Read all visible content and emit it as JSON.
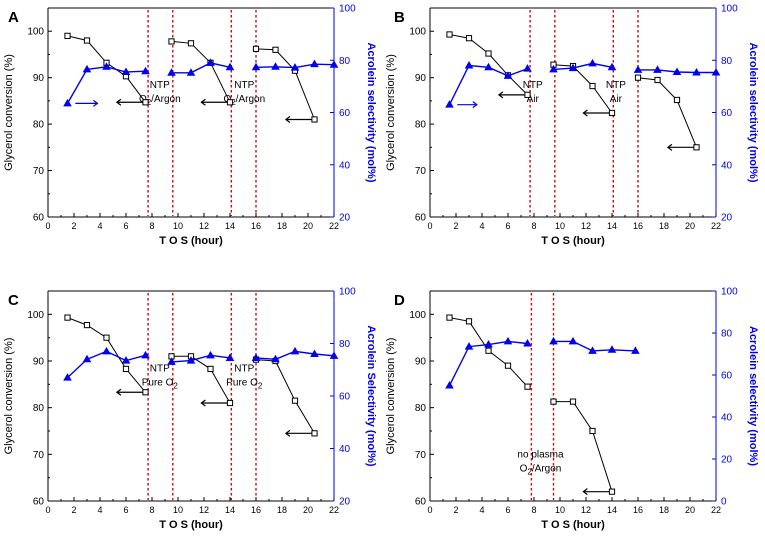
{
  "figure": {
    "shared": {
      "xlabel": "T O S (hour)",
      "ylabel_left": "Glycerol conversion (%)",
      "xlim": [
        0,
        22
      ],
      "xticks": [
        0,
        2,
        4,
        6,
        8,
        10,
        12,
        14,
        16,
        18,
        20,
        22
      ]
    },
    "colors": {
      "conversion": "#000000",
      "selectivity": "#0000ee",
      "divider": "#dd0000"
    }
  },
  "chart_data": [
    {
      "panel": "A",
      "type": "line",
      "title": "",
      "xlabel": "T O S (hour)",
      "ylabel": "Glycerol conversion (%)",
      "ylabel_right": "Acrolein selectivity (mol%)",
      "xlim": [
        0,
        22
      ],
      "ylim": [
        60,
        105
      ],
      "ylim_right": [
        20,
        100
      ],
      "yticks": [
        60,
        70,
        80,
        90,
        100
      ],
      "yticks_right": [
        20,
        40,
        60,
        80,
        100
      ],
      "dividers_x": [
        7.7,
        9.6,
        14.1,
        16.0
      ],
      "annotations": [
        {
          "lines": [
            "NTP",
            "O2/Argon"
          ],
          "x": 8.6,
          "y": 64,
          "axis": "right"
        },
        {
          "lines": [
            "NTP",
            "O2/Argon"
          ],
          "x": 15.1,
          "y": 64,
          "axis": "right"
        }
      ],
      "series": [
        {
          "name": "Glycerol conversion",
          "axis": "left",
          "marker": "open-square",
          "color": "#000000",
          "segments": [
            {
              "x": [
                1.5,
                3.0,
                4.5,
                6.0,
                7.5
              ],
              "y": [
                99.0,
                98.0,
                93.2,
                90.3,
                84.7
              ]
            },
            {
              "x": [
                9.5,
                11.0,
                12.5,
                14.0
              ],
              "y": [
                97.8,
                97.4,
                93.2,
                84.7
              ]
            },
            {
              "x": [
                16.0,
                17.5,
                19.0,
                20.5
              ],
              "y": [
                96.2,
                96.0,
                91.5,
                81.0
              ]
            }
          ]
        },
        {
          "name": "Acrolein selectivity",
          "axis": "right",
          "marker": "filled-triangle",
          "color": "#0000ee",
          "segments": [
            {
              "x": [
                1.5,
                3.0,
                4.5,
                6.0,
                7.5
              ],
              "y": [
                63.5,
                76.5,
                77.5,
                75.5,
                75.8
              ]
            },
            {
              "x": [
                9.5,
                11.0,
                12.5,
                14.0
              ],
              "y": [
                75.2,
                75.2,
                79.0,
                77.3
              ]
            },
            {
              "x": [
                16.0,
                17.5,
                19.0,
                20.5,
                22.0
              ],
              "y": [
                77.3,
                77.5,
                77.2,
                78.5,
                78.3
              ]
            }
          ]
        }
      ],
      "direction_arrows": [
        {
          "axis": "left",
          "x_from": 7.3,
          "x_to": 5.3,
          "y": 84.7
        },
        {
          "axis": "right",
          "x_from": 2.1,
          "x_to": 3.8,
          "y": 63.5
        },
        {
          "axis": "left",
          "x_from": 13.8,
          "x_to": 11.8,
          "y": 84.7
        },
        {
          "axis": "left",
          "x_from": 20.3,
          "x_to": 18.3,
          "y": 81.0
        }
      ]
    },
    {
      "panel": "B",
      "type": "line",
      "title": "",
      "xlabel": "T O S (hour)",
      "ylabel": "Glycerol conversion (%)",
      "ylabel_right": "Acrolein selectivity (mol%)",
      "xlim": [
        0,
        22
      ],
      "ylim": [
        60,
        105
      ],
      "ylim_right": [
        20,
        100
      ],
      "yticks": [
        60,
        70,
        80,
        90,
        100
      ],
      "yticks_right": [
        20,
        40,
        60,
        80,
        100
      ],
      "dividers_x": [
        7.7,
        9.6,
        14.1,
        16.0
      ],
      "annotations": [
        {
          "lines": [
            "NTP",
            "Air"
          ],
          "x": 7.9,
          "y": 64,
          "axis": "right"
        },
        {
          "lines": [
            "NTP",
            "Air"
          ],
          "x": 14.3,
          "y": 64,
          "axis": "right"
        }
      ],
      "series": [
        {
          "name": "Glycerol conversion",
          "axis": "left",
          "marker": "open-square",
          "color": "#000000",
          "segments": [
            {
              "x": [
                1.5,
                3.0,
                4.5,
                6.0,
                7.5
              ],
              "y": [
                99.3,
                98.5,
                95.2,
                90.5,
                86.3
              ]
            },
            {
              "x": [
                9.5,
                11.0,
                12.5,
                14.0
              ],
              "y": [
                92.8,
                92.5,
                88.2,
                82.4
              ]
            },
            {
              "x": [
                16.0,
                17.5,
                19.0,
                20.5
              ],
              "y": [
                90.0,
                89.5,
                85.2,
                75.0
              ]
            }
          ]
        },
        {
          "name": "Acrolein selectivity",
          "axis": "right",
          "marker": "filled-triangle",
          "color": "#0000ee",
          "segments": [
            {
              "x": [
                1.5,
                3.0,
                4.5,
                6.0,
                7.5
              ],
              "y": [
                63.0,
                78.0,
                77.3,
                74.0,
                76.8
              ]
            },
            {
              "x": [
                9.5,
                11.0,
                12.5,
                14.0
              ],
              "y": [
                76.5,
                77.0,
                78.8,
                77.3
              ]
            },
            {
              "x": [
                16.0,
                17.5,
                19.0,
                20.5,
                22.0
              ],
              "y": [
                76.3,
                76.3,
                75.5,
                75.3,
                75.3
              ]
            }
          ]
        }
      ],
      "direction_arrows": [
        {
          "axis": "left",
          "x_from": 7.3,
          "x_to": 5.3,
          "y": 86.3
        },
        {
          "axis": "right",
          "x_from": 2.1,
          "x_to": 3.6,
          "y": 63.0
        },
        {
          "axis": "left",
          "x_from": 13.8,
          "x_to": 11.8,
          "y": 82.4
        },
        {
          "axis": "left",
          "x_from": 20.3,
          "x_to": 18.3,
          "y": 75.0
        }
      ]
    },
    {
      "panel": "C",
      "type": "line",
      "title": "",
      "xlabel": "T O S (hour)",
      "ylabel": "Glycerol conversion (%)",
      "ylabel_right": "Acrolein Selectivity (mol%)",
      "xlim": [
        0,
        22
      ],
      "ylim": [
        60,
        105
      ],
      "ylim_right": [
        20,
        100
      ],
      "yticks": [
        60,
        70,
        80,
        90,
        100
      ],
      "yticks_right": [
        20,
        40,
        60,
        80,
        100
      ],
      "dividers_x": [
        7.7,
        9.6,
        14.1,
        16.0
      ],
      "annotations": [
        {
          "lines": [
            "NTP",
            "Pure O2"
          ],
          "x": 8.6,
          "y": 64,
          "axis": "right"
        },
        {
          "lines": [
            "NTP",
            "Pure O2"
          ],
          "x": 15.1,
          "y": 64,
          "axis": "right"
        }
      ],
      "series": [
        {
          "name": "Glycerol conversion",
          "axis": "left",
          "marker": "open-square",
          "color": "#000000",
          "segments": [
            {
              "x": [
                1.5,
                3.0,
                4.5,
                6.0,
                7.5
              ],
              "y": [
                99.3,
                97.7,
                95.0,
                88.3,
                83.3
              ]
            },
            {
              "x": [
                9.5,
                11.0,
                12.5,
                14.0
              ],
              "y": [
                91.0,
                91.0,
                88.3,
                81.0
              ]
            },
            {
              "x": [
                16.0,
                17.5,
                19.0,
                20.5
              ],
              "y": [
                90.3,
                90.0,
                81.5,
                74.5
              ]
            }
          ]
        },
        {
          "name": "Acrolein Selectivity",
          "axis": "right",
          "marker": "filled-triangle",
          "color": "#0000ee",
          "segments": [
            {
              "x": [
                1.5,
                3.0,
                4.5,
                6.0,
                7.5
              ],
              "y": [
                67.0,
                74.0,
                77.0,
                73.5,
                75.5
              ]
            },
            {
              "x": [
                9.5,
                11.0,
                12.5,
                14.0
              ],
              "y": [
                73.0,
                73.5,
                75.5,
                74.5
              ]
            },
            {
              "x": [
                16.0,
                17.5,
                19.0,
                20.5,
                22.0
              ],
              "y": [
                74.5,
                74.0,
                77.0,
                76.0,
                75.3
              ]
            }
          ]
        }
      ],
      "direction_arrows": [
        {
          "axis": "left",
          "x_from": 7.3,
          "x_to": 5.3,
          "y": 83.3
        },
        {
          "axis": "left",
          "x_from": 13.8,
          "x_to": 11.8,
          "y": 81.0
        },
        {
          "axis": "left",
          "x_from": 20.3,
          "x_to": 18.3,
          "y": 74.5
        }
      ]
    },
    {
      "panel": "D",
      "type": "line",
      "title": "",
      "xlabel": "T O S (hour)",
      "ylabel": "Glycerol conversion (%)",
      "ylabel_right": "Acrolein selectivity (mol%)",
      "xlim": [
        0,
        22
      ],
      "ylim": [
        60,
        105
      ],
      "ylim_right": [
        0,
        100
      ],
      "yticks": [
        60,
        70,
        80,
        90,
        100
      ],
      "yticks_right": [
        0,
        20,
        40,
        60,
        80,
        100
      ],
      "dividers_x": [
        7.8,
        9.5
      ],
      "annotations": [
        {
          "lines": [
            "no plasma",
            "O2/Argon"
          ],
          "x": 8.5,
          "y": 14,
          "axis": "right"
        }
      ],
      "series": [
        {
          "name": "Glycerol conversion",
          "axis": "left",
          "marker": "open-square",
          "color": "#000000",
          "segments": [
            {
              "x": [
                1.5,
                3.0,
                4.5,
                6.0,
                7.5
              ],
              "y": [
                99.3,
                98.5,
                92.2,
                89.0,
                84.5
              ]
            },
            {
              "x": [
                9.5,
                11.0,
                12.5,
                14.0
              ],
              "y": [
                81.3,
                81.3,
                75.0,
                62.0
              ]
            }
          ]
        },
        {
          "name": "Acrolein selectivity",
          "axis": "right",
          "marker": "filled-triangle",
          "color": "#0000ee",
          "segments": [
            {
              "x": [
                1.5,
                3.0,
                4.5,
                6.0,
                7.5
              ],
              "y": [
                55.0,
                73.5,
                74.5,
                76.0,
                75.0
              ]
            },
            {
              "x": [
                9.5,
                11.0,
                12.5,
                14.0,
                15.8
              ],
              "y": [
                76.0,
                76.0,
                71.5,
                72.0,
                71.5
              ]
            }
          ]
        }
      ],
      "direction_arrows": [
        {
          "axis": "left",
          "x_from": 13.8,
          "x_to": 11.8,
          "y": 62.0
        }
      ]
    }
  ]
}
